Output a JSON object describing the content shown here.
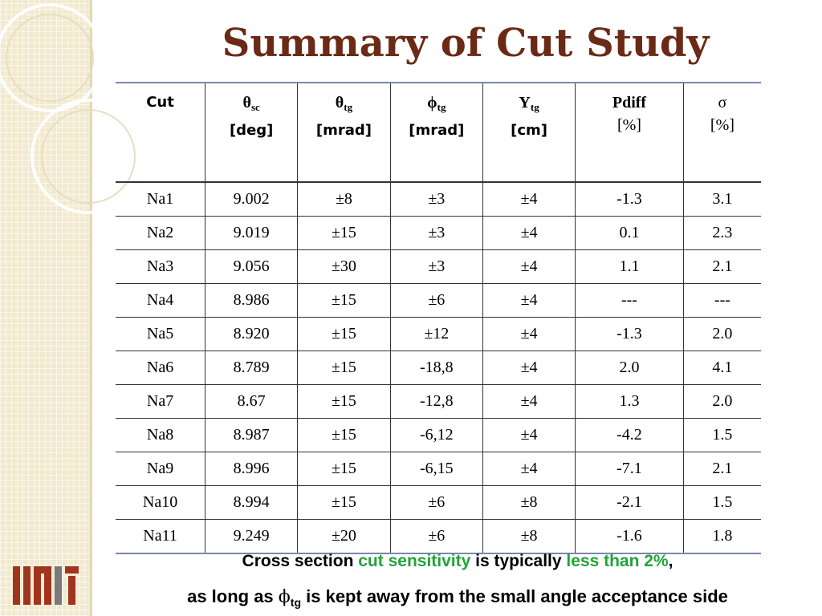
{
  "title": "Summary of Cut Study",
  "table": {
    "headers": [
      {
        "main": "Cut",
        "sub": "",
        "unit": ""
      },
      {
        "main": "θ",
        "sub": "sc",
        "unit": "[deg]"
      },
      {
        "main": "θ",
        "sub": "tg",
        "unit": "[mrad]"
      },
      {
        "main": "ϕ",
        "sub": "tg",
        "unit": "[mrad]"
      },
      {
        "main": "Y",
        "sub": "tg",
        "unit": "[cm]"
      },
      {
        "main": "Pdiff",
        "sub": "",
        "unit": "[%]"
      },
      {
        "main": "σ",
        "sub": "",
        "unit": "[%]"
      }
    ],
    "rows": [
      [
        "Na1",
        "9.002",
        "±8",
        "±3",
        "±4",
        "-1.3",
        "3.1"
      ],
      [
        "Na2",
        "9.019",
        "±15",
        "±3",
        "±4",
        "0.1",
        "2.3"
      ],
      [
        "Na3",
        "9.056",
        "±30",
        "±3",
        "±4",
        "1.1",
        "2.1"
      ],
      [
        "Na4",
        "8.986",
        "±15",
        "±6",
        "±4",
        "---",
        "---"
      ],
      [
        "Na5",
        "8.920",
        "±15",
        "±12",
        "±4",
        "-1.3",
        "2.0"
      ],
      [
        "Na6",
        "8.789",
        "±15",
        "-18,8",
        "±4",
        "2.0",
        "4.1"
      ],
      [
        "Na7",
        "8.67",
        "±15",
        "-12,8",
        "±4",
        "1.3",
        "2.0"
      ],
      [
        "Na8",
        "8.987",
        "±15",
        "-6,12",
        "±4",
        "-4.2",
        "1.5"
      ],
      [
        "Na9",
        "8.996",
        "±15",
        "-6,15",
        "±4",
        "-7.1",
        "2.1"
      ],
      [
        "Na10",
        "8.994",
        "±15",
        "±6",
        "±8",
        "-2.1",
        "1.5"
      ],
      [
        "Na11",
        "9.249",
        "±20",
        "±6",
        "±8",
        "-1.6",
        "1.8"
      ]
    ]
  },
  "caption": {
    "line1": {
      "part1": "Cross section ",
      "highlight1": "cut sensitivity",
      "part2": " is typically ",
      "highlight2": "less than 2%",
      "part3": ","
    },
    "line2": {
      "part1": "as long as ",
      "symbol": "ϕ",
      "sub": "tg",
      "part2": " is kept away from the small angle acceptance side"
    }
  },
  "colors": {
    "title": "#6b2a16",
    "highlight": "#22a339",
    "logo": "#a0351f",
    "strip": "#f2ead0"
  },
  "icons": {
    "logo": "mit-logo-icon",
    "decoration": "circle-arcs-icon"
  }
}
